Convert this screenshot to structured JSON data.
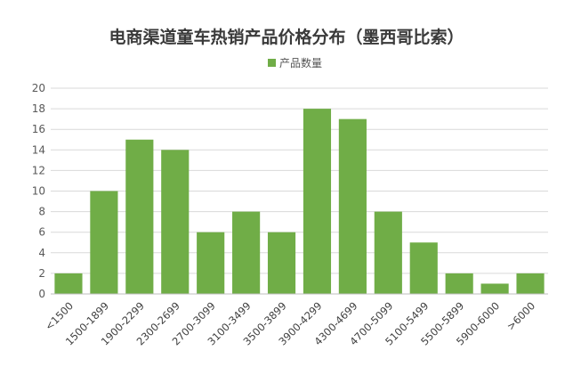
{
  "chart_data": {
    "type": "bar",
    "title": "电商渠道童车热销产品价格分布（墨西哥比索）",
    "xlabel": "",
    "ylabel": "",
    "categories": [
      "<1500",
      "1500-1899",
      "1900-2299",
      "2300-2699",
      "2700-3099",
      "3100-3499",
      "3500-3899",
      "3900-4299",
      "4300-4699",
      "4700-5099",
      "5100-5499",
      "5500-5899",
      "5900-6000",
      ">6000"
    ],
    "series": [
      {
        "name": "产品数量",
        "values": [
          2,
          10,
          15,
          14,
          6,
          8,
          6,
          18,
          17,
          8,
          5,
          2,
          1,
          2
        ]
      }
    ],
    "ylim": [
      0,
      20
    ],
    "yticks": [
      0,
      2,
      4,
      6,
      8,
      10,
      12,
      14,
      16,
      18,
      20
    ],
    "grid": true,
    "legend": "top-center",
    "colors": {
      "bar": "#70AD47",
      "grid": "#D9D9D9",
      "axis": "#BFBFBF"
    }
  }
}
